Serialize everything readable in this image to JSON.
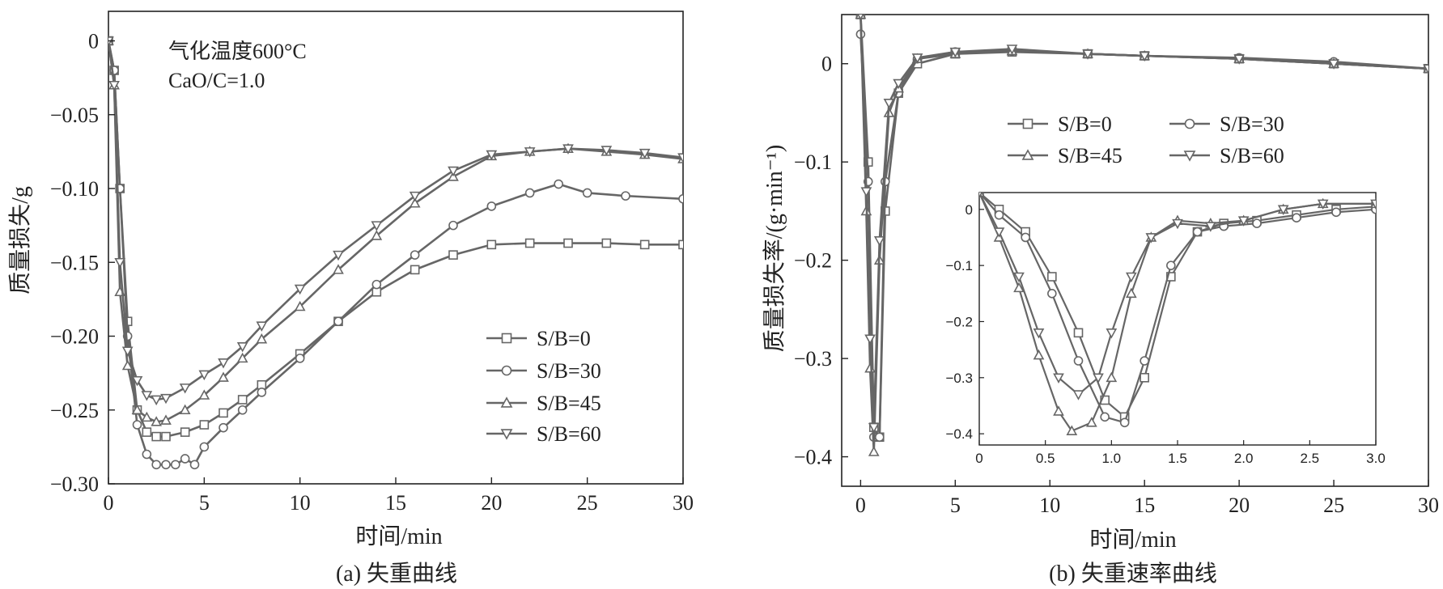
{
  "colors": {
    "series": "#666666",
    "axis": "#222222",
    "background": "#ffffff"
  },
  "chart_data": [
    {
      "type": "line",
      "panel": "a",
      "caption": "(a) 失重曲线",
      "xlabel": "时间/min",
      "ylabel": "质量损失/g",
      "xlim": [
        0,
        30
      ],
      "ylim": [
        -0.3,
        0.02
      ],
      "xticks": [
        0,
        5,
        10,
        15,
        20,
        25,
        30
      ],
      "yticks": [
        0,
        -0.05,
        -0.1,
        -0.15,
        -0.2,
        -0.25,
        -0.3
      ],
      "ytick_labels": [
        "0",
        "−0.05",
        "−0.10",
        "−0.15",
        "−0.20",
        "−0.25",
        "−0.30"
      ],
      "annotations": [
        "气化温度600°C",
        "CaO/C=1.0"
      ],
      "legend": "lower-right",
      "series": [
        {
          "name": "S/B=0",
          "marker": "square",
          "x": [
            0,
            0.3,
            0.6,
            1.0,
            1.5,
            2.0,
            2.5,
            3.0,
            4.0,
            5.0,
            6.0,
            7.0,
            8.0,
            10.0,
            12.0,
            14.0,
            16.0,
            18.0,
            20.0,
            22.0,
            24.0,
            26.0,
            28.0,
            30.0
          ],
          "y": [
            0,
            -0.02,
            -0.1,
            -0.19,
            -0.25,
            -0.265,
            -0.268,
            -0.268,
            -0.265,
            -0.26,
            -0.252,
            -0.243,
            -0.233,
            -0.212,
            -0.19,
            -0.17,
            -0.155,
            -0.145,
            -0.138,
            -0.137,
            -0.137,
            -0.137,
            -0.138,
            -0.138
          ]
        },
        {
          "name": "S/B=30",
          "marker": "circle",
          "x": [
            0,
            0.3,
            0.6,
            1.0,
            1.5,
            2.0,
            2.5,
            3.0,
            3.5,
            4.0,
            4.5,
            5.0,
            6.0,
            7.0,
            8.0,
            10.0,
            12.0,
            14.0,
            16.0,
            18.0,
            20.0,
            22.0,
            23.5,
            25.0,
            27.0,
            30.0
          ],
          "y": [
            0,
            -0.02,
            -0.1,
            -0.2,
            -0.26,
            -0.28,
            -0.287,
            -0.287,
            -0.287,
            -0.283,
            -0.287,
            -0.275,
            -0.262,
            -0.25,
            -0.238,
            -0.215,
            -0.19,
            -0.165,
            -0.145,
            -0.125,
            -0.112,
            -0.103,
            -0.097,
            -0.103,
            -0.105,
            -0.107
          ]
        },
        {
          "name": "S/B=45",
          "marker": "triangle-up",
          "x": [
            0,
            0.3,
            0.6,
            1.0,
            1.5,
            2.0,
            2.5,
            3.0,
            4.0,
            5.0,
            6.0,
            7.0,
            8.0,
            10.0,
            12.0,
            14.0,
            16.0,
            18.0,
            20.0,
            22.0,
            24.0,
            26.0,
            28.0,
            30.0
          ],
          "y": [
            0,
            -0.03,
            -0.17,
            -0.22,
            -0.25,
            -0.255,
            -0.258,
            -0.257,
            -0.25,
            -0.24,
            -0.228,
            -0.215,
            -0.202,
            -0.18,
            -0.155,
            -0.132,
            -0.11,
            -0.092,
            -0.078,
            -0.075,
            -0.073,
            -0.075,
            -0.077,
            -0.08
          ]
        },
        {
          "name": "S/B=60",
          "marker": "triangle-down",
          "x": [
            0,
            0.3,
            0.6,
            1.0,
            1.5,
            2.0,
            2.5,
            3.0,
            4.0,
            5.0,
            6.0,
            7.0,
            8.0,
            10.0,
            12.0,
            14.0,
            16.0,
            18.0,
            20.0,
            22.0,
            24.0,
            26.0,
            28.0,
            30.0
          ],
          "y": [
            0,
            -0.03,
            -0.15,
            -0.21,
            -0.23,
            -0.24,
            -0.243,
            -0.242,
            -0.235,
            -0.226,
            -0.218,
            -0.207,
            -0.193,
            -0.168,
            -0.145,
            -0.125,
            -0.105,
            -0.088,
            -0.077,
            -0.075,
            -0.073,
            -0.074,
            -0.076,
            -0.079
          ]
        }
      ]
    },
    {
      "type": "line",
      "panel": "b",
      "caption": "(b) 失重速率曲线",
      "xlabel": "时间/min",
      "ylabel": "质量损失率/(g·min⁻¹)",
      "xlim": [
        -1,
        30
      ],
      "ylim": [
        -0.43,
        0.05
      ],
      "xticks": [
        0,
        5,
        10,
        15,
        20,
        25,
        30
      ],
      "yticks": [
        0,
        -0.1,
        -0.2,
        -0.3,
        -0.4
      ],
      "ytick_labels": [
        "0",
        "−0.1",
        "−0.2",
        "−0.3",
        "−0.4"
      ],
      "legend": "upper-middle",
      "series": [
        {
          "name": "S/B=0",
          "marker": "square",
          "x": [
            0,
            0.4,
            0.7,
            1.0,
            1.3,
            2.0,
            3.0,
            5.0,
            8.0,
            12.0,
            15.0,
            20.0,
            25.0,
            30.0
          ],
          "y": [
            0.05,
            -0.1,
            -0.37,
            -0.38,
            -0.15,
            -0.03,
            0.0,
            0.01,
            0.012,
            0.01,
            0.008,
            0.005,
            0.0,
            -0.005
          ]
        },
        {
          "name": "S/B=30",
          "marker": "circle",
          "x": [
            0,
            0.4,
            0.7,
            1.0,
            1.3,
            2.0,
            3.0,
            5.0,
            8.0,
            12.0,
            15.0,
            20.0,
            25.0,
            30.0
          ],
          "y": [
            0.03,
            -0.12,
            -0.38,
            -0.38,
            -0.12,
            -0.03,
            0.005,
            0.012,
            0.013,
            0.01,
            0.008,
            0.006,
            0.002,
            -0.005
          ]
        },
        {
          "name": "S/B=45",
          "marker": "triangle-up",
          "x": [
            0,
            0.3,
            0.5,
            0.7,
            1.0,
            1.5,
            2.0,
            3.0,
            5.0,
            8.0,
            12.0,
            15.0,
            20.0,
            25.0,
            30.0
          ],
          "y": [
            0.05,
            -0.15,
            -0.31,
            -0.395,
            -0.2,
            -0.05,
            -0.025,
            0.005,
            0.01,
            0.013,
            0.01,
            0.008,
            0.005,
            0.0,
            -0.005
          ]
        },
        {
          "name": "S/B=60",
          "marker": "triangle-down",
          "x": [
            0,
            0.3,
            0.5,
            0.7,
            1.0,
            1.5,
            2.0,
            3.0,
            5.0,
            8.0,
            12.0,
            15.0,
            20.0,
            25.0,
            30.0
          ],
          "y": [
            0.05,
            -0.13,
            -0.28,
            -0.37,
            -0.18,
            -0.04,
            -0.02,
            0.006,
            0.012,
            0.015,
            0.01,
            0.008,
            0.005,
            0.0,
            -0.005
          ]
        }
      ],
      "inset": {
        "xlim": [
          0,
          3.0
        ],
        "ylim": [
          -0.42,
          0.03
        ],
        "xticks": [
          0,
          0.5,
          1.0,
          1.5,
          2.0,
          2.5,
          3.0
        ],
        "xtick_labels": [
          "0",
          "0.5",
          "1.0",
          "1.5",
          "2.0",
          "2.5",
          "3.0"
        ],
        "yticks": [
          0,
          -0.1,
          -0.2,
          -0.3,
          -0.4
        ],
        "ytick_labels": [
          "0",
          "−0.1",
          "−0.2",
          "−0.3",
          "−0.4"
        ],
        "series": [
          {
            "name": "S/B=0",
            "marker": "square",
            "x": [
              0,
              0.15,
              0.35,
              0.55,
              0.75,
              0.95,
              1.1,
              1.25,
              1.45,
              1.65,
              1.85,
              2.1,
              2.4,
              2.7,
              3.0
            ],
            "y": [
              0.03,
              0.0,
              -0.04,
              -0.12,
              -0.22,
              -0.34,
              -0.37,
              -0.3,
              -0.12,
              -0.04,
              -0.025,
              -0.02,
              -0.01,
              0.0,
              0.005
            ]
          },
          {
            "name": "S/B=30",
            "marker": "circle",
            "x": [
              0,
              0.15,
              0.35,
              0.55,
              0.75,
              0.95,
              1.1,
              1.25,
              1.45,
              1.65,
              1.85,
              2.1,
              2.4,
              2.7,
              3.0
            ],
            "y": [
              0.03,
              -0.01,
              -0.05,
              -0.15,
              -0.27,
              -0.37,
              -0.38,
              -0.27,
              -0.1,
              -0.04,
              -0.03,
              -0.025,
              -0.015,
              -0.005,
              0.0
            ]
          },
          {
            "name": "S/B=45",
            "marker": "triangle-up",
            "x": [
              0,
              0.15,
              0.3,
              0.45,
              0.6,
              0.7,
              0.85,
              1.0,
              1.15,
              1.3,
              1.5,
              1.75,
              2.0,
              2.3,
              2.6,
              3.0
            ],
            "y": [
              0.03,
              -0.05,
              -0.14,
              -0.26,
              -0.36,
              -0.395,
              -0.38,
              -0.3,
              -0.15,
              -0.05,
              -0.02,
              -0.025,
              -0.02,
              0.0,
              0.01,
              0.01
            ]
          },
          {
            "name": "S/B=60",
            "marker": "triangle-down",
            "x": [
              0,
              0.15,
              0.3,
              0.45,
              0.6,
              0.75,
              0.9,
              1.0,
              1.15,
              1.3,
              1.5,
              1.75,
              2.0,
              2.3,
              2.6,
              3.0
            ],
            "y": [
              0.03,
              -0.04,
              -0.12,
              -0.22,
              -0.3,
              -0.33,
              -0.3,
              -0.22,
              -0.12,
              -0.05,
              -0.025,
              -0.03,
              -0.02,
              0.0,
              0.01,
              0.01
            ]
          }
        ]
      }
    }
  ]
}
